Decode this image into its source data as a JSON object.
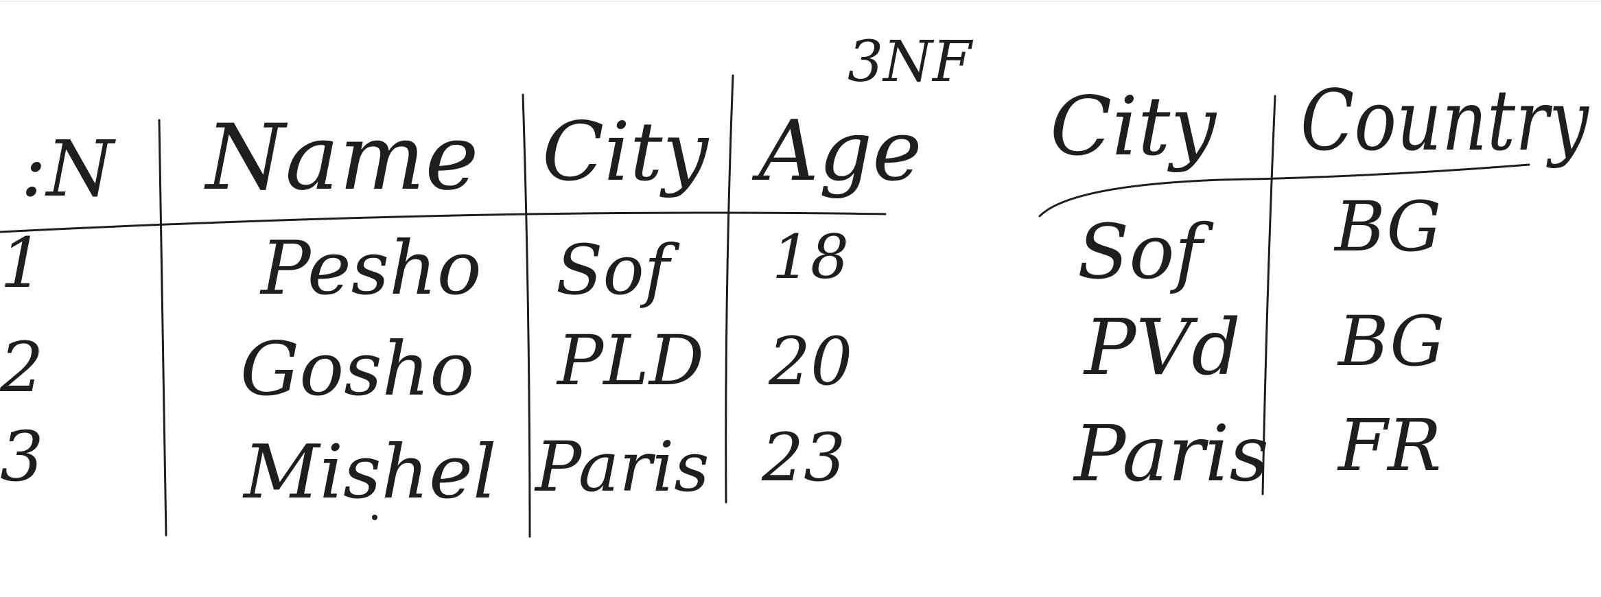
{
  "title": "3NF",
  "left_table": {
    "columns": [
      ":N",
      "Name",
      "City",
      "Age"
    ],
    "rows": [
      [
        "1",
        "Pesho",
        "Sof",
        "18"
      ],
      [
        "2",
        "Gosho",
        "PLD",
        "20"
      ],
      [
        "3",
        "Mishel",
        "Paris",
        "23"
      ]
    ]
  },
  "right_table": {
    "columns": [
      "City",
      "Country"
    ],
    "rows": [
      [
        "Sof",
        "BG"
      ],
      [
        "PVd",
        "BG"
      ],
      [
        "Paris",
        "FR"
      ]
    ]
  },
  "colors": {
    "ink": "#1e1e1e",
    "background": "#ffffff"
  }
}
